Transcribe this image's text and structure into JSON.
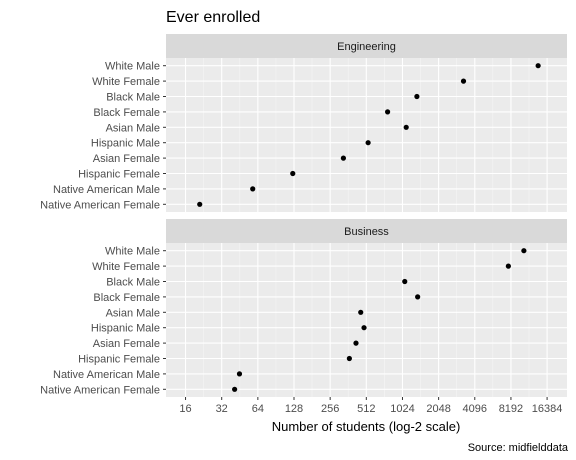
{
  "chart_data": {
    "type": "scatter",
    "title": "Ever enrolled",
    "xlabel": "Number of students (log-2 scale)",
    "caption": "Source: midfielddata",
    "x_scale": "log2",
    "xlim": [
      11,
      24000
    ],
    "x_ticks": [
      16,
      32,
      64,
      128,
      256,
      512,
      1024,
      2048,
      4096,
      8192,
      16384
    ],
    "x_tick_labels": [
      "16",
      "32",
      "64",
      "128",
      "256",
      "512",
      "1024",
      "2048",
      "4096",
      "8192",
      "16384"
    ],
    "grid": true,
    "categories": [
      "White Male",
      "White Female",
      "Black Male",
      "Black Female",
      "Asian Male",
      "Hispanic Male",
      "Asian Female",
      "Hispanic Female",
      "Native American Male",
      "Native American Female"
    ],
    "panels": [
      {
        "name": "Engineering",
        "points": [
          {
            "category": "White Male",
            "value": 13800
          },
          {
            "category": "White Female",
            "value": 3300
          },
          {
            "category": "Black Male",
            "value": 1350
          },
          {
            "category": "Black Female",
            "value": 770
          },
          {
            "category": "Asian Male",
            "value": 1100
          },
          {
            "category": "Hispanic Male",
            "value": 530
          },
          {
            "category": "Asian Female",
            "value": 330
          },
          {
            "category": "Hispanic Female",
            "value": 125
          },
          {
            "category": "Native American Male",
            "value": 58
          },
          {
            "category": "Native American Female",
            "value": 21
          }
        ]
      },
      {
        "name": "Business",
        "points": [
          {
            "category": "White Male",
            "value": 10500
          },
          {
            "category": "White Female",
            "value": 7800
          },
          {
            "category": "Black Male",
            "value": 1070
          },
          {
            "category": "Black Female",
            "value": 1370
          },
          {
            "category": "Asian Male",
            "value": 460
          },
          {
            "category": "Hispanic Male",
            "value": 490
          },
          {
            "category": "Asian Female",
            "value": 420
          },
          {
            "category": "Hispanic Female",
            "value": 370
          },
          {
            "category": "Native American Male",
            "value": 45
          },
          {
            "category": "Native American Female",
            "value": 41
          }
        ]
      }
    ]
  }
}
